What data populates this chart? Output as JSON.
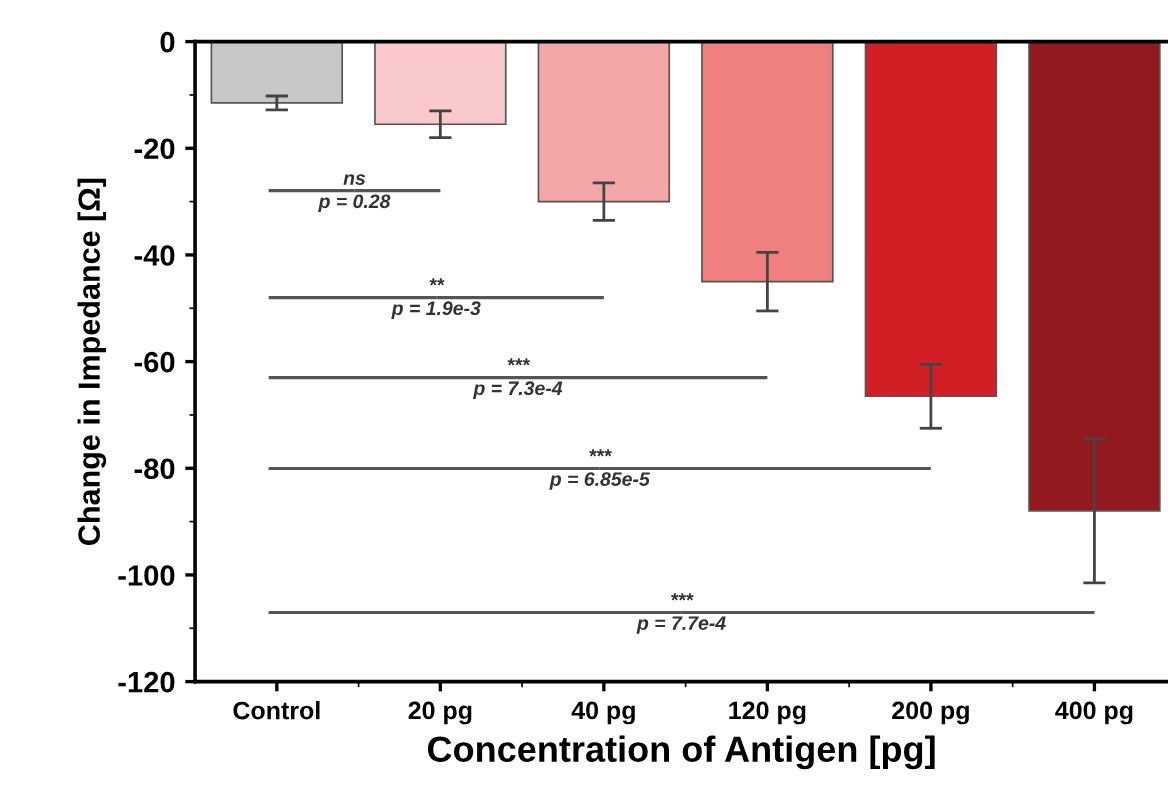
{
  "chart_data": {
    "type": "bar",
    "xlabel": "Concentration of Antigen [pg]",
    "ylabel": "Change in Impedance [Ω]",
    "categories": [
      "Control",
      "20 pg",
      "40 pg",
      "120 pg",
      "200 pg",
      "400 pg"
    ],
    "values": [
      -11.5,
      -15.5,
      -30,
      -45,
      -66.5,
      -88
    ],
    "errors": [
      1.3,
      2.5,
      3.5,
      5.5,
      6,
      13.5
    ],
    "colors": [
      "#c8c8c8",
      "#f9c9cb",
      "#f4a6a9",
      "#f08080",
      "#d21f26",
      "#921a1e"
    ],
    "ylim": [
      -120,
      0
    ],
    "yticks": [
      -120,
      -100,
      -80,
      -60,
      -40,
      -20,
      0
    ],
    "grid": false,
    "legend": false,
    "annotations": [
      "ns",
      "p = 0.28",
      "**",
      "p = 1.9e-3",
      "***",
      "p = 7.3e-4",
      "***",
      "p = 6.85e-5",
      "***",
      "p = 7.7e-4"
    ]
  }
}
